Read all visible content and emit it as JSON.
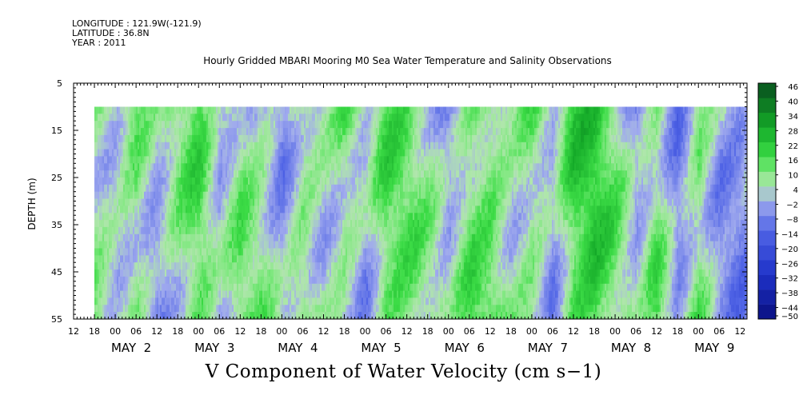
{
  "header": {
    "longitude": "LONGITUDE : 121.9W(-121.9)",
    "latitude": "LATITUDE : 36.8N",
    "year": "YEAR : 2011"
  },
  "colors": {
    "neg_strong": "#0a0f80",
    "neg_mid": "#4a5be6",
    "neg_weak": "#9ba6ee",
    "near_zero": "#b9dcb6",
    "pos_weak": "#9ce89c",
    "pos_mid": "#28dd3c",
    "pos_strong": "#0c5a1e"
  },
  "chart_data": {
    "type": "heatmap",
    "title": "Hourly Gridded MBARI Mooring M0 Sea Water Temperature and Salinity Observations",
    "caption": "V Component of Water Velocity (cm s−1)",
    "ylabel": "DEPTH (m)",
    "y_axis": {
      "range": [
        5,
        55
      ],
      "inverted": true,
      "tick_labels": [
        "5",
        "15",
        "25",
        "35",
        "45",
        "55"
      ],
      "data_range": [
        10,
        55
      ]
    },
    "x_axis": {
      "start": "2011-05-01 12:00",
      "end": "2011-05-09 14:00",
      "data_start": "2011-05-01 18:00",
      "hour_tick_labels": [
        "12",
        "18",
        "00",
        "06",
        "12",
        "18",
        "00",
        "06",
        "12",
        "18",
        "00",
        "06",
        "12",
        "18",
        "00",
        "06",
        "12",
        "18",
        "00",
        "06",
        "12",
        "18",
        "00",
        "06",
        "12",
        "18",
        "00",
        "06",
        "12",
        "18",
        "00",
        "06",
        "12"
      ],
      "day_labels": [
        "MAY  2",
        "MAY  3",
        "MAY  4",
        "MAY  5",
        "MAY  6",
        "MAY  7",
        "MAY  8",
        "MAY  9"
      ]
    },
    "colorbar": {
      "levels": [
        -50,
        -44,
        -38,
        -32,
        -26,
        -20,
        -14,
        -8,
        -2,
        4,
        10,
        16,
        22,
        28,
        34,
        40,
        46
      ],
      "tick_labels": [
        "46",
        "40",
        "34",
        "28",
        "22",
        "16",
        "10",
        "4",
        "−2",
        "−8",
        "−14",
        "−20",
        "−26",
        "−32",
        "−38",
        "−44",
        "−50"
      ]
    },
    "approx_column_profile_time_hours": [
      0,
      6,
      12,
      18,
      24,
      30,
      36,
      42,
      48,
      54,
      60,
      66,
      72,
      78,
      84,
      90,
      96,
      102,
      108,
      114,
      120,
      126,
      132,
      138,
      144,
      150,
      156,
      162,
      168,
      174,
      180,
      186,
      188
    ],
    "approx_mean_velocity_cm_s": [
      8,
      4,
      10,
      -2,
      6,
      12,
      -4,
      8,
      6,
      -3,
      10,
      4,
      8,
      -2,
      12,
      10,
      4,
      -3,
      12,
      14,
      6,
      10,
      -2,
      16,
      18,
      8,
      -4,
      10,
      -6,
      12,
      -3,
      -6,
      -4
    ]
  }
}
